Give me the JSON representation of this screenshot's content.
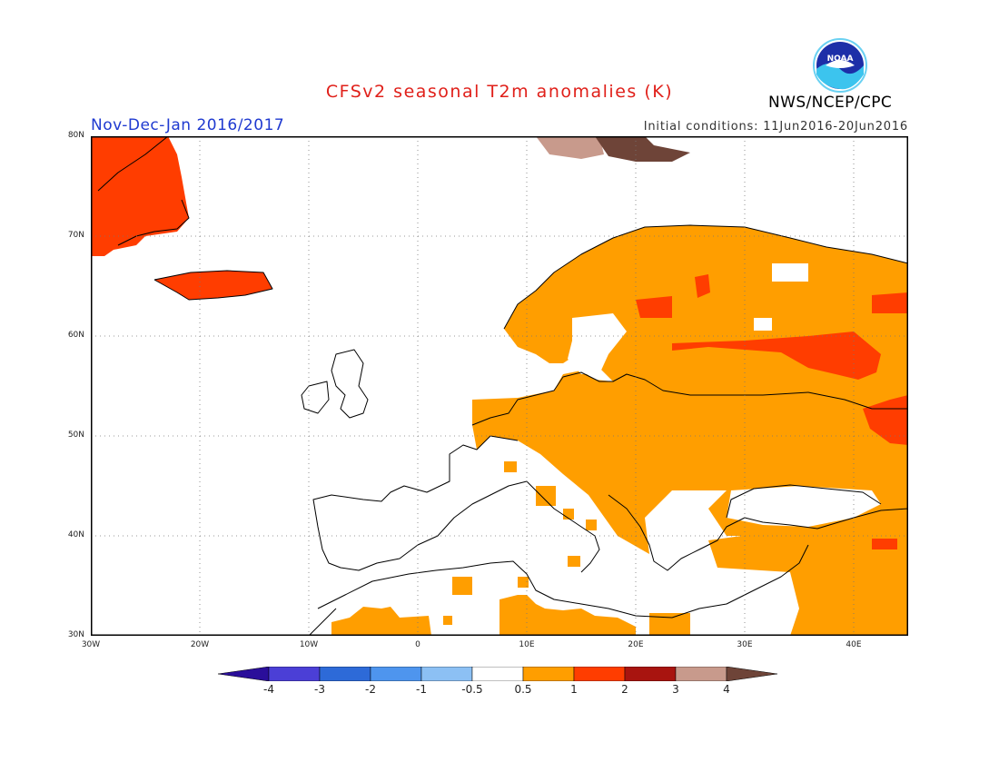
{
  "title": "CFSv2 seasonal T2m anomalies (K)",
  "period": "Nov-Dec-Jan 2016/2017",
  "initial_conditions": "Initial conditions: 11Jun2016-20Jun2016",
  "agency": "NWS/NCEP/CPC",
  "logo_text": "NOAA",
  "map": {
    "lon_range": [
      -30,
      45
    ],
    "lat_range": [
      30,
      80
    ],
    "grid": true,
    "lat_ticks": [
      "80N",
      "70N",
      "60N",
      "50N",
      "40N",
      "30N"
    ],
    "lon_ticks": [
      "30W",
      "20W",
      "10W",
      "0",
      "10E",
      "20E",
      "30E",
      "40E"
    ]
  },
  "colorbar": {
    "labels": [
      "-4",
      "-3",
      "-2",
      "-1",
      "-0.5",
      "0.5",
      "1",
      "2",
      "3",
      "4"
    ],
    "colors": [
      "#2a0e9a",
      "#4b3fd6",
      "#2d6ad8",
      "#4e95ee",
      "#8cc0f4",
      "#ffffff",
      "#ff9e00",
      "#ff3d00",
      "#a8140f",
      "#c89a8c",
      "#6e4438"
    ]
  },
  "anomaly_colors": {
    "0.5 to 1": "#ff9e00",
    "1 to 2": "#ff3d00",
    "3 to 4": "#c89a8c",
    "above 4": "#6e4438"
  }
}
